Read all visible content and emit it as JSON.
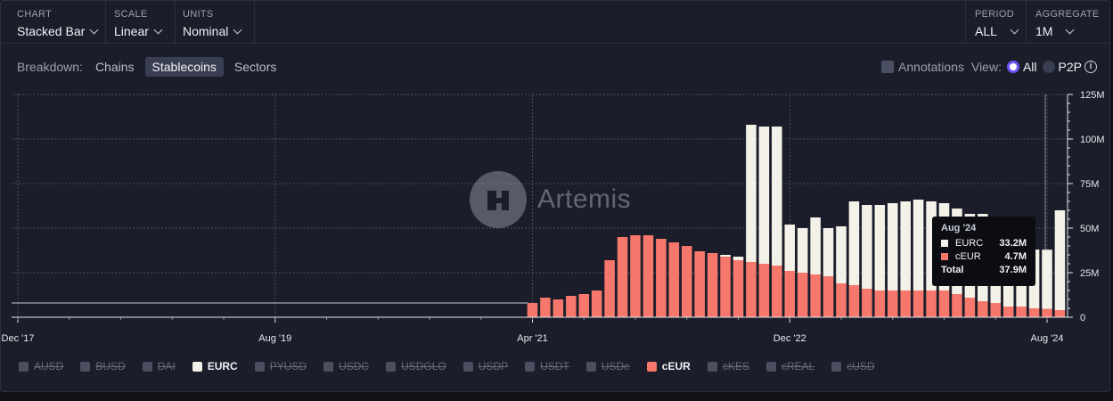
{
  "controls": {
    "chart": {
      "label": "CHART",
      "value": "Stacked Bar"
    },
    "scale": {
      "label": "SCALE",
      "value": "Linear"
    },
    "units": {
      "label": "UNITS",
      "value": "Nominal"
    },
    "period": {
      "label": "PERIOD",
      "value": "ALL"
    },
    "aggregate": {
      "label": "AGGREGATE",
      "value": "1M"
    }
  },
  "breakdown": {
    "label": "Breakdown:",
    "options": [
      "Chains",
      "Stablecoins",
      "Sectors"
    ],
    "active": "Stablecoins"
  },
  "view": {
    "annotations_label": "Annotations",
    "view_label": "View:",
    "all_label": "All",
    "p2p_label": "P2P",
    "info_glyph": "i"
  },
  "watermark": {
    "text": "Artemis"
  },
  "legend": [
    {
      "name": "AUSD",
      "active": false
    },
    {
      "name": "BUSD",
      "active": false
    },
    {
      "name": "DAI",
      "active": false
    },
    {
      "name": "EURC",
      "active": true,
      "color": "#f3f1e8"
    },
    {
      "name": "PYUSD",
      "active": false
    },
    {
      "name": "USDC",
      "active": false
    },
    {
      "name": "USDGLO",
      "active": false
    },
    {
      "name": "USDP",
      "active": false
    },
    {
      "name": "USDT",
      "active": false
    },
    {
      "name": "USDe",
      "active": false
    },
    {
      "name": "cEUR",
      "active": true,
      "color": "#f6776b"
    },
    {
      "name": "cKES",
      "active": false
    },
    {
      "name": "cREAL",
      "active": false
    },
    {
      "name": "cUSD",
      "active": false
    }
  ],
  "tooltip": {
    "date": "Aug '24",
    "rows": [
      {
        "name": "EURC",
        "value": "33.2M",
        "color": "#f3f1e8"
      },
      {
        "name": "cEUR",
        "value": "4.7M",
        "color": "#f6776b"
      }
    ],
    "total_label": "Total",
    "total_value": "37.9M"
  },
  "chart_data": {
    "type": "bar",
    "stacked": true,
    "ylim": [
      0,
      125
    ],
    "y_unit": "M",
    "y_ticks": [
      "0",
      "25M",
      "50M",
      "75M",
      "100M",
      "125M"
    ],
    "x_ticks": [
      "Dec '17",
      "Aug '19",
      "Apr '21",
      "Dec '22",
      "Aug '24"
    ],
    "grid": true,
    "baseline_line_value": 8,
    "categories": [
      "Apr '21",
      "May '21",
      "Jun '21",
      "Jul '21",
      "Aug '21",
      "Sep '21",
      "Oct '21",
      "Nov '21",
      "Dec '21",
      "Jan '22",
      "Feb '22",
      "Mar '22",
      "Apr '22",
      "May '22",
      "Jun '22",
      "Jul '22",
      "Aug '22",
      "Sep '22",
      "Oct '22",
      "Nov '22",
      "Dec '22",
      "Jan '23",
      "Feb '23",
      "Mar '23",
      "Apr '23",
      "May '23",
      "Jun '23",
      "Jul '23",
      "Aug '23",
      "Sep '23",
      "Oct '23",
      "Nov '23",
      "Dec '23",
      "Jan '24",
      "Feb '24",
      "Mar '24",
      "Apr '24",
      "May '24",
      "Jun '24",
      "Jul '24",
      "Aug '24",
      "Sep '24"
    ],
    "series": [
      {
        "name": "cEUR",
        "color": "#f6776b",
        "values": [
          8,
          11,
          10,
          12,
          13,
          15,
          32,
          45,
          46,
          46,
          44,
          42,
          40,
          37,
          36,
          34,
          32,
          31,
          30,
          29,
          26,
          25,
          24,
          23,
          19,
          18,
          16,
          15,
          15,
          15,
          15,
          15,
          15,
          13,
          11,
          9,
          8,
          6,
          6,
          5,
          4.7,
          4
        ]
      },
      {
        "name": "EURC",
        "color": "#f3f1e8",
        "values": [
          0,
          0,
          0,
          0,
          0,
          0,
          0,
          0,
          0,
          0,
          0,
          0,
          0,
          0,
          0,
          1,
          2,
          77,
          77,
          78,
          26,
          25,
          32,
          27,
          32,
          47,
          47,
          48,
          49,
          50,
          51,
          50,
          49,
          48,
          47,
          49,
          46,
          33,
          33,
          33,
          33.2,
          56
        ]
      }
    ]
  }
}
